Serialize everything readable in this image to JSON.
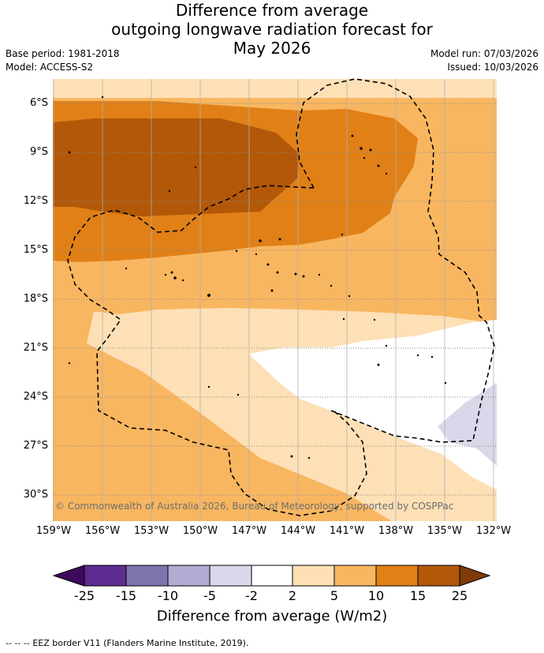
{
  "header": {
    "title_line1": "Difference from average",
    "title_line2": "outgoing longwave radiation forecast for",
    "title_line3": "May 2026",
    "base_period": "Base period: 1981-2018",
    "model": "Model: ACCESS-S2",
    "model_run": "Model run: 07/03/2026",
    "issued": "Issued: 10/03/2026"
  },
  "map": {
    "lat_labels": [
      "6°S",
      "9°S",
      "12°S",
      "15°S",
      "18°S",
      "21°S",
      "24°S",
      "27°S",
      "30°S"
    ],
    "lon_labels": [
      "159°W",
      "156°W",
      "153°W",
      "150°W",
      "147°W",
      "144°W",
      "141°W",
      "138°W",
      "135°W",
      "132°W"
    ],
    "copyright": "© Commonwealth of Australia 2026, Bureau of Meteorology, supported by COSPPac",
    "colors": {
      "band_2_5": "#fde0b6",
      "band_5_10": "#f9b660",
      "band_10_15": "#e08017",
      "band_15_25": "#b25808",
      "band_neg2_neg5": "#d8d8ea",
      "eez": "#000000"
    }
  },
  "colorbar": {
    "ticks": [
      "-25",
      "-15",
      "-10",
      "-5",
      "-2",
      "2",
      "5",
      "10",
      "15",
      "25"
    ],
    "colors": [
      "#3f0a5e",
      "#5e2b90",
      "#7f73ad",
      "#b2abd2",
      "#d8d8ea",
      "#ffffff",
      "#fde0b6",
      "#f9b660",
      "#e08017",
      "#b25808",
      "#7f3a08"
    ],
    "title": "Difference from average (W/m2)"
  },
  "footer": {
    "legend_symbol": "--  --  --",
    "legend_text": "EEZ border V11 (Flanders Marine Institute, 2019)."
  }
}
